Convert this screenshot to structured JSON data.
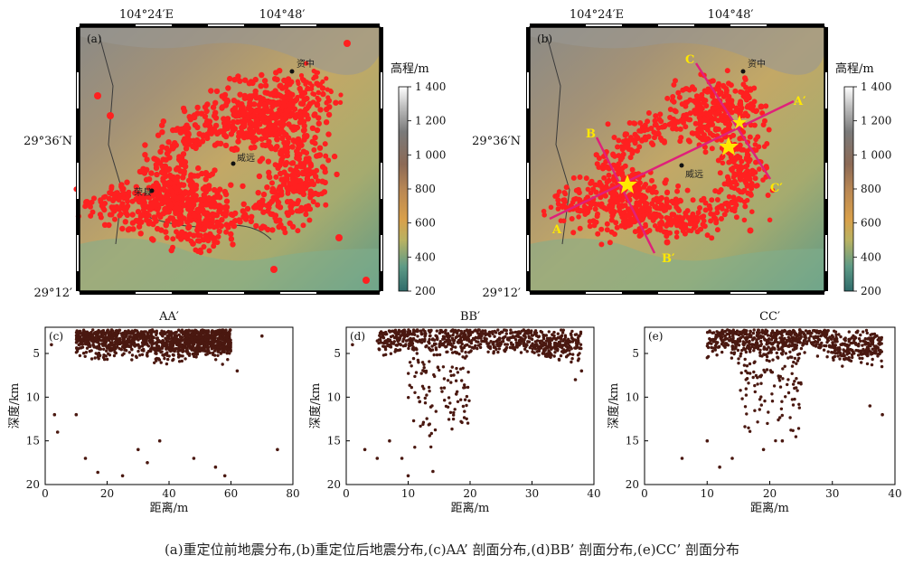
{
  "caption": "(a)重定位前地震分布,(b)重定位后地震分布,(c)AA’ 剖面分布,(d)BB’ 剖面分布,(e)CC’ 剖面分布",
  "colors": {
    "event": "#ff2020",
    "profile_line": "#e0207a",
    "label": "#ffe800",
    "star": "#ffe800",
    "depth_point": "#4a1810",
    "colorbar": [
      "#2f6b6b",
      "#5e9a86",
      "#b9b262",
      "#d9a04a",
      "#b78654",
      "#8c6a56",
      "#7a7a7a",
      "#bdbdbd",
      "#ffffff"
    ]
  },
  "maps": [
    {
      "panel": "(a)",
      "top_ticks": [
        "104°24′E",
        "104°48′"
      ],
      "left_ticks": [
        "29°36′N",
        "29°12′"
      ],
      "towns": [
        {
          "name": "资中"
        },
        {
          "name": "威远"
        },
        {
          "name": "荣县"
        }
      ],
      "has_profiles": false
    },
    {
      "panel": "(b)",
      "top_ticks": [
        "104°24′E",
        "104°48′"
      ],
      "left_ticks": [
        "29°36′N",
        "29°12′"
      ],
      "towns": [
        {
          "name": "资中"
        },
        {
          "name": "威远"
        }
      ],
      "has_profiles": true,
      "profile_labels": [
        "A",
        "A′",
        "B",
        "B′",
        "C",
        "C′"
      ]
    }
  ],
  "colorbar": {
    "title": "高程/m",
    "ticks": [
      "1 400",
      "1 200",
      "1 000",
      "800",
      "600",
      "400",
      "200"
    ],
    "range": [
      200,
      1400
    ]
  },
  "chart_data": [
    {
      "type": "scatter",
      "panel": "(c)",
      "title": "AA′",
      "xlabel": "距离/m",
      "ylabel": "深度/km",
      "xlim": [
        0,
        80
      ],
      "ylim": [
        20,
        2
      ],
      "xticks": [
        0,
        20,
        40,
        60,
        80
      ],
      "yticks": [
        5,
        10,
        15,
        20
      ],
      "clusters": [
        {
          "x_range": [
            10,
            35
          ],
          "depth_mean": 3.5,
          "density": "high"
        },
        {
          "x_range": [
            45,
            60
          ],
          "depth_mean": 3.6,
          "density": "high"
        },
        {
          "x_range": [
            35,
            45
          ],
          "depth_mean": 4.0,
          "density": "medium"
        }
      ],
      "sample_points": [
        [
          2,
          4
        ],
        [
          3,
          12
        ],
        [
          4,
          14
        ],
        [
          10,
          12
        ],
        [
          13,
          17
        ],
        [
          17,
          18.6
        ],
        [
          25,
          19
        ],
        [
          30,
          16
        ],
        [
          33,
          17.5
        ],
        [
          37,
          15
        ],
        [
          48,
          17
        ],
        [
          55,
          18
        ],
        [
          58,
          19
        ],
        [
          62,
          7
        ],
        [
          70,
          3
        ],
        [
          75,
          16
        ]
      ]
    },
    {
      "type": "scatter",
      "panel": "(d)",
      "title": "BB′",
      "xlabel": "距离/m",
      "ylabel": "深度/km",
      "xlim": [
        0,
        40
      ],
      "ylim": [
        20,
        2
      ],
      "xticks": [
        0,
        10,
        20,
        30,
        40
      ],
      "yticks": [
        5,
        10,
        15,
        20
      ],
      "clusters": [
        {
          "x_range": [
            5,
            30
          ],
          "depth_mean": 3.3,
          "density": "high"
        },
        {
          "x_range": [
            30,
            38
          ],
          "depth_mean": 4.0,
          "density": "medium"
        },
        {
          "x_range": [
            10,
            20
          ],
          "depth_mean": 9.0,
          "density": "low"
        }
      ],
      "sample_points": [
        [
          1,
          4
        ],
        [
          3,
          16
        ],
        [
          5,
          17
        ],
        [
          7,
          15
        ],
        [
          9,
          17
        ],
        [
          10,
          19
        ],
        [
          14,
          18.5
        ],
        [
          37,
          8
        ],
        [
          38,
          7
        ]
      ]
    },
    {
      "type": "scatter",
      "panel": "(e)",
      "title": "CC′",
      "xlabel": "距离/m",
      "ylabel": "深度/km",
      "xlim": [
        0,
        40
      ],
      "ylim": [
        20,
        2
      ],
      "xticks": [
        0,
        10,
        20,
        30,
        40
      ],
      "yticks": [
        5,
        10,
        15,
        20
      ],
      "clusters": [
        {
          "x_range": [
            10,
            30
          ],
          "depth_mean": 3.4,
          "density": "high"
        },
        {
          "x_range": [
            30,
            38
          ],
          "depth_mean": 4.2,
          "density": "medium"
        },
        {
          "x_range": [
            15,
            25
          ],
          "depth_mean": 8.0,
          "density": "low"
        }
      ],
      "sample_points": [
        [
          6,
          17
        ],
        [
          10,
          15
        ],
        [
          12,
          18
        ],
        [
          14,
          17
        ],
        [
          19,
          16
        ],
        [
          22,
          15
        ],
        [
          36,
          11
        ],
        [
          38,
          12
        ]
      ]
    }
  ]
}
